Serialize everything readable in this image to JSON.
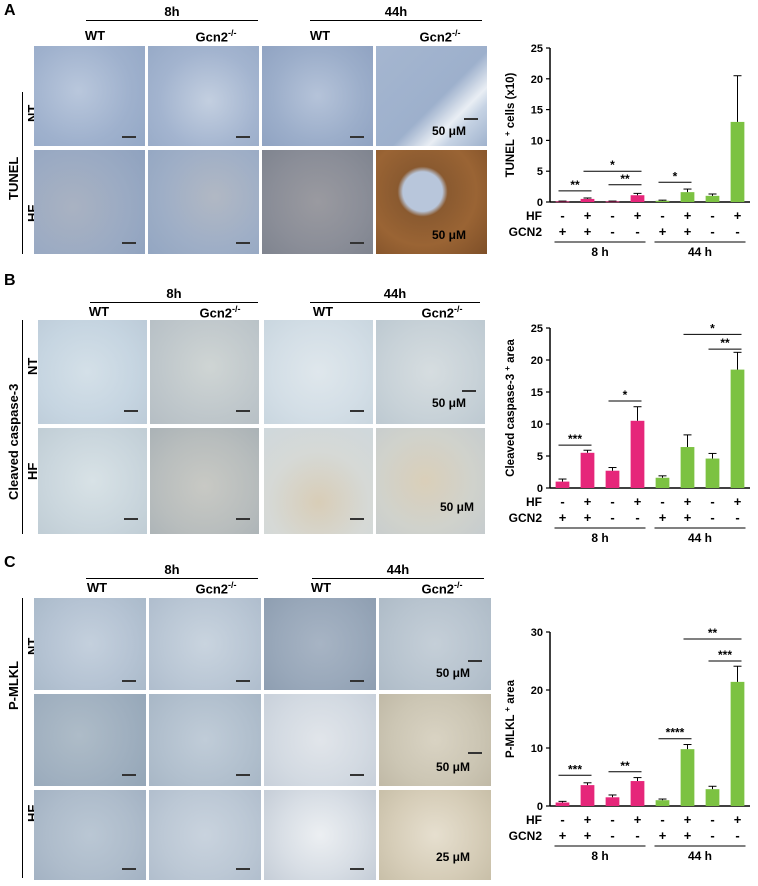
{
  "panels": [
    {
      "letter": "A",
      "time_labels": [
        "8h",
        "44h"
      ],
      "genotypes": [
        "WT",
        "Gcn2",
        "WT",
        "Gcn2"
      ],
      "genotype_sup": "-/-",
      "stain_label": "TUNEL",
      "row_labels": [
        "NT",
        "HF"
      ],
      "scale_labels": [
        "50 μM",
        "50 μM"
      ]
    },
    {
      "letter": "B",
      "time_labels": [
        "8h",
        "44h"
      ],
      "genotypes": [
        "WT",
        "Gcn2",
        "WT",
        "Gcn2"
      ],
      "genotype_sup": "-/-",
      "stain_label": "Cleaved caspase-3",
      "row_labels": [
        "NT",
        "HF"
      ],
      "scale_labels": [
        "50 μM",
        "50 μM"
      ]
    },
    {
      "letter": "C",
      "time_labels": [
        "8h",
        "44h"
      ],
      "genotypes": [
        "WT",
        "Gcn2",
        "WT",
        "Gcn2"
      ],
      "genotype_sup": "-/-",
      "stain_label": "P-MLKL",
      "row_labels": [
        "NT",
        "HF"
      ],
      "scale_labels": [
        "50 μM",
        "50 μM",
        "25 μM"
      ]
    }
  ],
  "chart_data": [
    {
      "type": "bar",
      "ylabel": "TUNEL",
      "ylabel_sup": "+",
      "ylabel_suffix": "cells (x10)",
      "ylim": [
        0,
        25
      ],
      "yticks": [
        "0",
        "5",
        "10",
        "15",
        "20",
        "25"
      ],
      "values": [
        0.1,
        0.5,
        0.1,
        1.1,
        0.2,
        1.6,
        1.0,
        13.0
      ],
      "errors": [
        0.05,
        0.15,
        0.05,
        0.3,
        0.1,
        0.5,
        0.3,
        7.5
      ],
      "colors": [
        "#e6267a",
        "#e6267a",
        "#e6267a",
        "#e6267a",
        "#7cc242",
        "#7cc242",
        "#7cc242",
        "#7cc242"
      ],
      "hf_row": [
        "-",
        "+",
        "-",
        "+",
        "-",
        "+",
        "-",
        "+"
      ],
      "gcn2_row": [
        "+",
        "+",
        "-",
        "-",
        "+",
        "+",
        "-",
        "-"
      ],
      "row_names": [
        "HF",
        "GCN2"
      ],
      "groups": [
        "8 h",
        "44 h"
      ],
      "sig": [
        {
          "a": 0,
          "b": 1,
          "label": "**",
          "y": 1.8
        },
        {
          "a": 2,
          "b": 3,
          "label": "**",
          "y": 2.8
        },
        {
          "a": 1,
          "b": 3,
          "label": "*",
          "y": 5.0
        },
        {
          "a": 4,
          "b": 5,
          "label": "*",
          "y": 3.2
        }
      ]
    },
    {
      "type": "bar",
      "ylabel": "Cleaved caspase-3",
      "ylabel_sup": "+",
      "ylabel_suffix": "area",
      "ylim": [
        0,
        25
      ],
      "yticks": [
        "0",
        "5",
        "10",
        "15",
        "20",
        "25"
      ],
      "values": [
        1.0,
        5.5,
        2.7,
        10.5,
        1.6,
        6.4,
        4.6,
        18.5
      ],
      "errors": [
        0.4,
        0.4,
        0.5,
        2.2,
        0.3,
        1.9,
        0.8,
        2.7
      ],
      "colors": [
        "#e6267a",
        "#e6267a",
        "#e6267a",
        "#e6267a",
        "#7cc242",
        "#7cc242",
        "#7cc242",
        "#7cc242"
      ],
      "hf_row": [
        "-",
        "+",
        "-",
        "+",
        "-",
        "+",
        "-",
        "+"
      ],
      "gcn2_row": [
        "+",
        "+",
        "-",
        "-",
        "+",
        "+",
        "-",
        "-"
      ],
      "row_names": [
        "HF",
        "GCN2"
      ],
      "groups": [
        "8 h",
        "44 h"
      ],
      "sig": [
        {
          "a": 0,
          "b": 1,
          "label": "***",
          "y": 6.7
        },
        {
          "a": 2,
          "b": 3,
          "label": "*",
          "y": 13.6
        },
        {
          "a": 6,
          "b": 7,
          "label": "**",
          "y": 21.7
        },
        {
          "a": 5,
          "b": 7,
          "label": "*",
          "y": 24.0
        }
      ]
    },
    {
      "type": "bar",
      "ylabel": "P-MLKL",
      "ylabel_sup": "+",
      "ylabel_suffix": "area",
      "ylim": [
        0,
        30
      ],
      "yticks": [
        "0",
        "10",
        "20",
        "30"
      ],
      "values": [
        0.6,
        3.6,
        1.5,
        4.3,
        1.0,
        9.8,
        2.9,
        21.4
      ],
      "errors": [
        0.2,
        0.4,
        0.4,
        0.6,
        0.2,
        0.8,
        0.5,
        2.7
      ],
      "colors": [
        "#e6267a",
        "#e6267a",
        "#e6267a",
        "#e6267a",
        "#7cc242",
        "#7cc242",
        "#7cc242",
        "#7cc242"
      ],
      "hf_row": [
        "-",
        "+",
        "-",
        "+",
        "-",
        "+",
        "-",
        "+"
      ],
      "gcn2_row": [
        "+",
        "+",
        "-",
        "-",
        "+",
        "+",
        "-",
        "-"
      ],
      "row_names": [
        "HF",
        "GCN2"
      ],
      "groups": [
        "8 h",
        "44 h"
      ],
      "sig": [
        {
          "a": 0,
          "b": 1,
          "label": "***",
          "y": 5.3
        },
        {
          "a": 2,
          "b": 3,
          "label": "**",
          "y": 5.9
        },
        {
          "a": 4,
          "b": 5,
          "label": "****",
          "y": 11.6
        },
        {
          "a": 6,
          "b": 7,
          "label": "***",
          "y": 25.0
        },
        {
          "a": 5,
          "b": 7,
          "label": "**",
          "y": 28.8
        }
      ]
    }
  ]
}
